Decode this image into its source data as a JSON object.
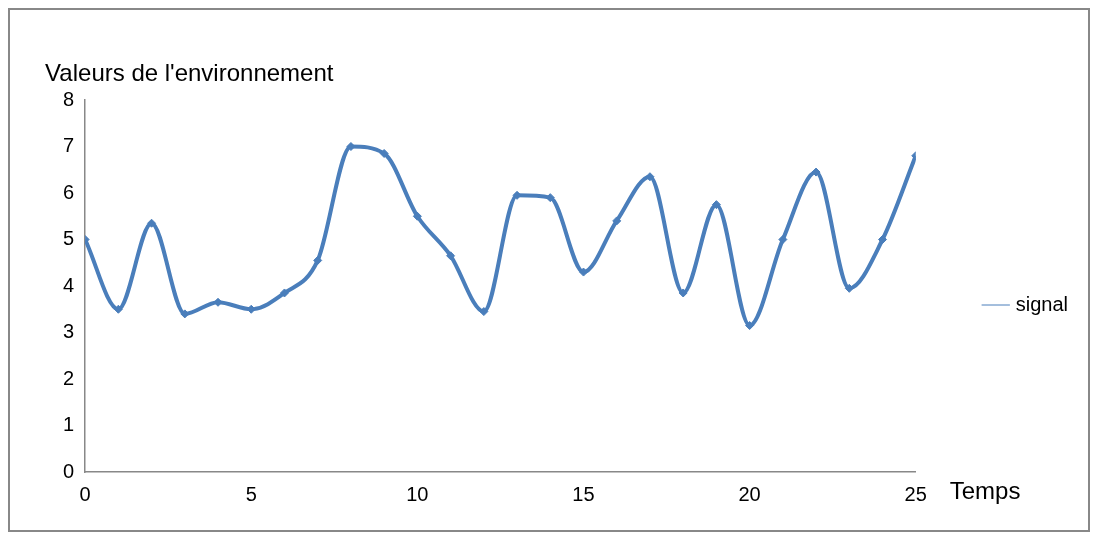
{
  "chart_data": {
    "type": "line",
    "ylabel": "Valeurs de l'environnement",
    "xlabel": "Temps",
    "x": [
      0,
      1,
      2,
      3,
      4,
      5,
      6,
      7,
      8,
      9,
      10,
      11,
      12,
      13,
      14,
      15,
      16,
      17,
      18,
      19,
      20,
      21,
      22,
      23,
      24,
      25
    ],
    "series": [
      {
        "name": "signal",
        "color": "#4a7ebb",
        "values": [
          5.0,
          3.5,
          5.35,
          3.4,
          3.65,
          3.5,
          3.85,
          4.55,
          7.0,
          6.85,
          5.5,
          4.65,
          3.45,
          5.95,
          5.9,
          4.3,
          5.4,
          6.35,
          3.85,
          5.75,
          3.15,
          5.0,
          6.45,
          3.95,
          5.0,
          6.8
        ]
      }
    ],
    "xlim": [
      0,
      25
    ],
    "xticks": [
      0,
      5,
      10,
      15,
      20,
      25
    ],
    "ylim": [
      0,
      8
    ],
    "yticks": [
      0,
      1,
      2,
      3,
      4,
      5,
      6,
      7,
      8
    ],
    "grid": false,
    "legend": "right",
    "marker": "diamond",
    "line_style": "solid"
  }
}
